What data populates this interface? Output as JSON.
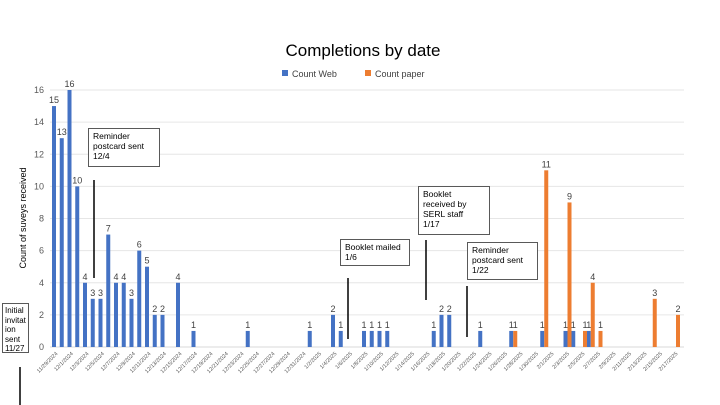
{
  "chart_data": {
    "type": "bar",
    "title": "Completions by date",
    "ylabel": "Count of suveys received",
    "xlabel": "",
    "ylim": [
      0,
      16
    ],
    "yticks": [
      0,
      2,
      4,
      6,
      8,
      10,
      12,
      14,
      16
    ],
    "grid": true,
    "legend": "top",
    "categories": [
      "11/29/2024",
      "11/30/2024",
      "12/1/2024",
      "12/2/2024",
      "12/3/2024",
      "12/4/2024",
      "12/5/2024",
      "12/6/2024",
      "12/7/2024",
      "12/8/2024",
      "12/9/2024",
      "12/10/2024",
      "12/11/2024",
      "12/12/2024",
      "12/13/2024",
      "12/14/2024",
      "12/15/2024",
      "12/16/2024",
      "12/17/2024",
      "12/18/2024",
      "12/19/2024",
      "12/20/2024",
      "12/21/2024",
      "12/22/2024",
      "12/23/2024",
      "12/24/2024",
      "12/25/2024",
      "12/26/2024",
      "12/27/2024",
      "12/28/2024",
      "12/29/2024",
      "12/30/2024",
      "12/31/2024",
      "1/1/2025",
      "1/2/2025",
      "1/3/2025",
      "1/4/2025",
      "1/5/2025",
      "1/6/2025",
      "1/7/2025",
      "1/8/2025",
      "1/9/2025",
      "1/10/2025",
      "1/11/2025",
      "1/12/2025",
      "1/13/2025",
      "1/14/2025",
      "1/15/2025",
      "1/16/2025",
      "1/17/2025",
      "1/18/2025",
      "1/19/2025",
      "1/20/2025",
      "1/21/2025",
      "1/22/2025",
      "1/23/2025",
      "1/24/2025",
      "1/25/2025",
      "1/26/2025",
      "1/27/2025",
      "1/28/2025",
      "1/29/2025",
      "1/30/2025",
      "1/31/2025",
      "2/1/2025",
      "2/2/2025",
      "2/3/2025",
      "2/4/2025",
      "2/5/2025",
      "2/6/2025",
      "2/7/2025",
      "2/8/2025",
      "2/9/2025",
      "2/10/2025",
      "2/11/2025",
      "2/12/2025",
      "2/13/2025",
      "2/14/2025",
      "2/15/2025",
      "2/16/2025",
      "2/17/2025"
    ],
    "series": [
      {
        "name": "Count Web",
        "color": "#4472C4",
        "values": [
          15,
          13,
          16,
          10,
          4,
          3,
          3,
          7,
          4,
          4,
          3,
          6,
          5,
          2,
          2,
          0,
          4,
          0,
          1,
          0,
          0,
          0,
          0,
          0,
          0,
          1,
          0,
          0,
          0,
          0,
          0,
          0,
          0,
          1,
          0,
          0,
          2,
          1,
          0,
          0,
          1,
          1,
          1,
          1,
          0,
          0,
          0,
          0,
          0,
          1,
          2,
          2,
          0,
          0,
          0,
          1,
          0,
          0,
          0,
          1,
          0,
          0,
          0,
          1,
          0,
          0,
          1,
          1,
          0,
          1,
          0,
          0,
          0,
          0,
          0,
          0,
          0,
          0,
          0,
          0,
          0
        ]
      },
      {
        "name": "Count paper",
        "color": "#ED7D31",
        "values": [
          0,
          0,
          0,
          0,
          0,
          0,
          0,
          0,
          0,
          0,
          0,
          0,
          0,
          0,
          0,
          0,
          0,
          0,
          0,
          0,
          0,
          0,
          0,
          0,
          0,
          0,
          0,
          0,
          0,
          0,
          0,
          0,
          0,
          0,
          0,
          0,
          0,
          0,
          0,
          0,
          0,
          0,
          0,
          0,
          0,
          0,
          0,
          0,
          0,
          0,
          0,
          0,
          0,
          0,
          0,
          0,
          0,
          0,
          0,
          1,
          0,
          0,
          0,
          11,
          0,
          0,
          9,
          0,
          1,
          4,
          1,
          0,
          0,
          0,
          0,
          0,
          0,
          3,
          0,
          0,
          2
        ]
      }
    ],
    "annotations": [
      {
        "text": "Initial\ninvitat\nion\nsent\n11/27"
      },
      {
        "text": "Reminder\npostcard sent\n12/4"
      },
      {
        "text": "Booklet mailed\n1/6"
      },
      {
        "text": "Booklet\nreceived by\nSERL staff\n1/17"
      },
      {
        "text": "Reminder\npostcard sent\n1/22"
      }
    ]
  }
}
